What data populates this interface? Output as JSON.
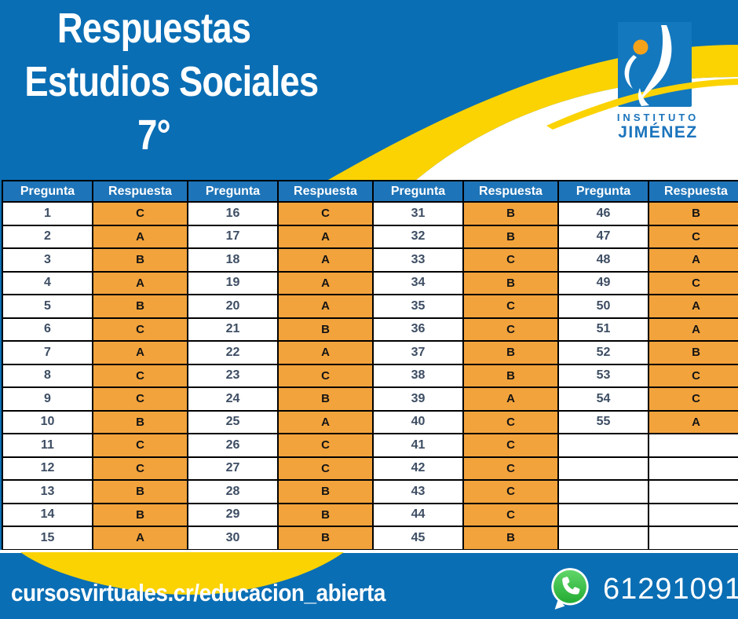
{
  "title": {
    "line1": "Respuestas",
    "line2": "Estudios Sociales",
    "line3": "7°"
  },
  "logo": {
    "name_top": "INSTITUTO",
    "name_bottom": "JIMÉNEZ"
  },
  "table": {
    "rows_per_block": 15,
    "blocks": [
      {
        "headers": [
          "Pregunta",
          "Respuesta"
        ],
        "rows": [
          [
            "1",
            "C"
          ],
          [
            "2",
            "A"
          ],
          [
            "3",
            "B"
          ],
          [
            "4",
            "A"
          ],
          [
            "5",
            "B"
          ],
          [
            "6",
            "C"
          ],
          [
            "7",
            "A"
          ],
          [
            "8",
            "C"
          ],
          [
            "9",
            "C"
          ],
          [
            "10",
            "B"
          ],
          [
            "11",
            "C"
          ],
          [
            "12",
            "C"
          ],
          [
            "13",
            "B"
          ],
          [
            "14",
            "B"
          ],
          [
            "15",
            "A"
          ]
        ]
      },
      {
        "headers": [
          "Pregunta",
          "Respuesta"
        ],
        "rows": [
          [
            "16",
            "C"
          ],
          [
            "17",
            "A"
          ],
          [
            "18",
            "A"
          ],
          [
            "19",
            "A"
          ],
          [
            "20",
            "A"
          ],
          [
            "21",
            "B"
          ],
          [
            "22",
            "A"
          ],
          [
            "23",
            "C"
          ],
          [
            "24",
            "B"
          ],
          [
            "25",
            "A"
          ],
          [
            "26",
            "C"
          ],
          [
            "27",
            "C"
          ],
          [
            "28",
            "B"
          ],
          [
            "29",
            "B"
          ],
          [
            "30",
            "B"
          ]
        ]
      },
      {
        "headers": [
          "Pregunta",
          "Respuesta"
        ],
        "rows": [
          [
            "31",
            "B"
          ],
          [
            "32",
            "B"
          ],
          [
            "33",
            "C"
          ],
          [
            "34",
            "B"
          ],
          [
            "35",
            "C"
          ],
          [
            "36",
            "C"
          ],
          [
            "37",
            "B"
          ],
          [
            "38",
            "B"
          ],
          [
            "39",
            "A"
          ],
          [
            "40",
            "C"
          ],
          [
            "41",
            "C"
          ],
          [
            "42",
            "C"
          ],
          [
            "43",
            "C"
          ],
          [
            "44",
            "C"
          ],
          [
            "45",
            "B"
          ]
        ]
      },
      {
        "headers": [
          "Pregunta",
          "Respuesta"
        ],
        "rows": [
          [
            "46",
            "B"
          ],
          [
            "47",
            "C"
          ],
          [
            "48",
            "A"
          ],
          [
            "49",
            "C"
          ],
          [
            "50",
            "A"
          ],
          [
            "51",
            "A"
          ],
          [
            "52",
            "B"
          ],
          [
            "53",
            "C"
          ],
          [
            "54",
            "C"
          ],
          [
            "55",
            "A"
          ]
        ]
      }
    ]
  },
  "footer": {
    "website": "cursosvirtuales.cr/educacion_abierta",
    "phone": "61291091"
  },
  "icons": {
    "whatsapp": "whatsapp-phone-icon",
    "logo_mark": "instituto-jimenez-logo"
  },
  "colors": {
    "background_blue": "#0a6eb4",
    "table_header_blue": "#1e74b8",
    "answer_orange": "#f2a33c",
    "wave_yellow": "#fbd303",
    "logo_square_blue": "#1478be",
    "logo_text_blue": "#1b74bc",
    "whatsapp_green": "#2cb742",
    "question_text": "#3d4d63"
  }
}
